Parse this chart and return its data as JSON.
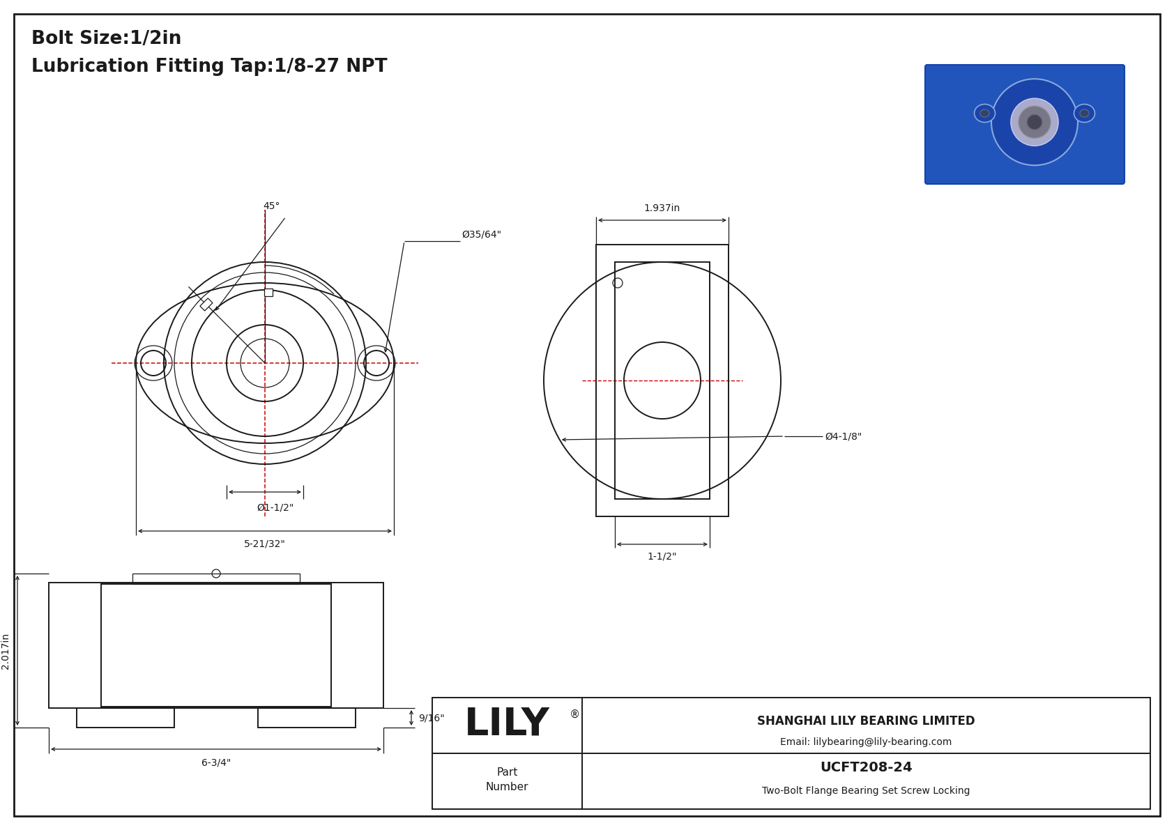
{
  "title_line1": "Bolt Size:1/2in",
  "title_line2": "Lubrication Fitting Tap:1/8-27 NPT",
  "bg_color": "#ffffff",
  "line_color": "#1a1a1a",
  "red_color": "#cc0000",
  "dim_color": "#1a1a1a",
  "company": "SHANGHAI LILY BEARING LIMITED",
  "email": "Email: lilybearing@lily-bearing.com",
  "part_number": "UCFT208-24",
  "part_desc": "Two-Bolt Flange Bearing Set Screw Locking",
  "part_label": "Part\nNumber",
  "lily_text": "LILY",
  "dim_front_width": "5-21/32\"",
  "dim_front_bore": "Ø1-1/2\"",
  "dim_front_hole": "Ø35/64\"",
  "dim_angle": "45°",
  "dim_side_depth": "1.937in",
  "dim_side_od": "Ø4-1/8\"",
  "dim_side_width": "1-1/2\"",
  "dim_bottom_height": "2.017in",
  "dim_bottom_step": "9/16\"",
  "dim_bottom_width": "6-3/4\""
}
